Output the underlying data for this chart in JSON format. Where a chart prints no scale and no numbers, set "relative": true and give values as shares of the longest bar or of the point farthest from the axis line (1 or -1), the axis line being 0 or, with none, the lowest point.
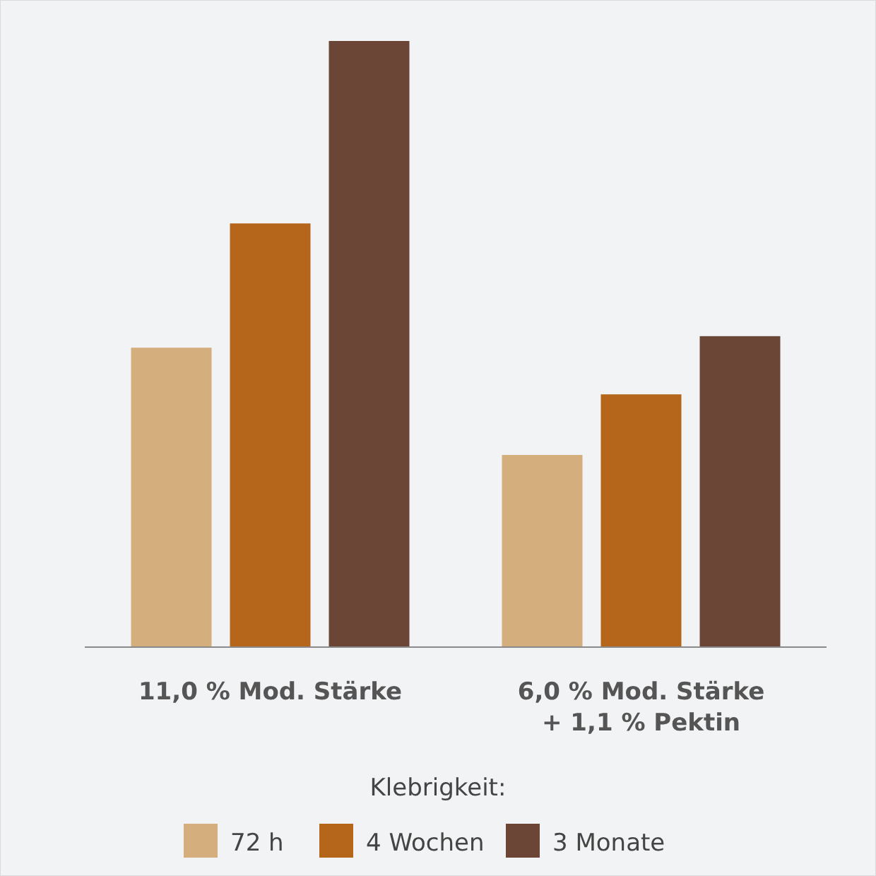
{
  "chart_data": {
    "type": "bar",
    "relative": true,
    "categories": [
      "11,0 % Mod. Stärke",
      "6,0 % Mod. Stärke + 1,1 % Pektin"
    ],
    "legend_title": "Klebrigkeit:",
    "legend": "bottom",
    "series": [
      {
        "name": "72 h",
        "color": "#d4ae7c",
        "values": [
          0.494,
          0.317
        ]
      },
      {
        "name": "4 Wochen",
        "color": "#b5661a",
        "values": [
          0.699,
          0.417
        ]
      },
      {
        "name": "3 Monate",
        "color": "#6b4637",
        "values": [
          1,
          0.513
        ]
      }
    ]
  }
}
